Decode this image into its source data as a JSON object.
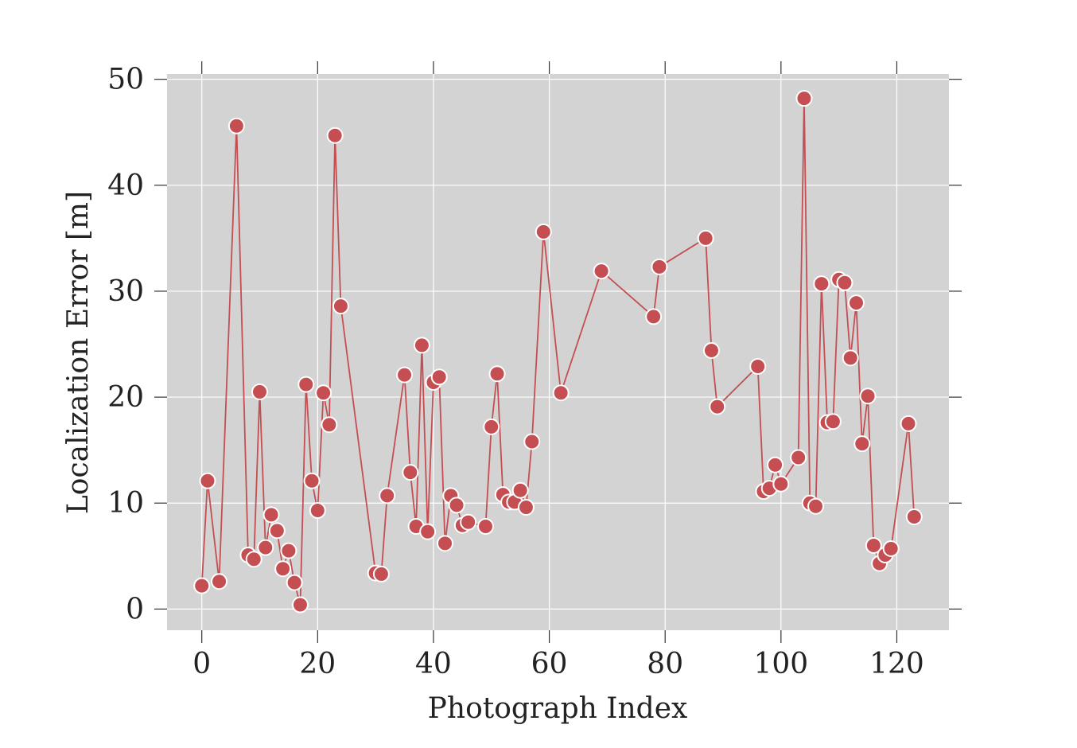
{
  "chart_data": {
    "type": "line",
    "title": "",
    "xlabel": "Photograph Index",
    "ylabel": "Localization Error [m]",
    "xlim": [
      -6,
      129
    ],
    "ylim": [
      -2,
      50.5
    ],
    "xticks": [
      0,
      20,
      40,
      60,
      80,
      100,
      120
    ],
    "xtick_labels": [
      "0",
      "20",
      "40",
      "60",
      "80",
      "100",
      "120"
    ],
    "yticks": [
      0,
      10,
      20,
      30,
      40,
      50
    ],
    "ytick_labels": [
      "0",
      "10",
      "20",
      "30",
      "40",
      "50"
    ],
    "grid": true,
    "legend": "none",
    "colors": {
      "plot_background": "#d3d3d3",
      "grid": "#ffffff",
      "series": "#c44e52",
      "marker_edge": "#ffffff"
    },
    "series": [
      {
        "x": [
          0,
          1,
          3,
          6,
          8,
          9,
          10,
          11,
          12,
          13,
          14,
          15,
          16,
          17,
          18,
          19,
          20,
          21,
          22,
          23,
          24,
          30,
          31,
          32,
          35,
          36,
          37,
          38,
          39,
          40,
          41,
          42,
          43,
          44,
          45,
          46,
          49,
          50,
          51,
          52,
          53,
          54,
          55,
          56,
          57,
          59,
          62,
          69,
          78,
          79,
          87,
          88,
          89,
          96,
          97,
          98,
          99,
          100,
          103,
          104,
          105,
          106,
          107,
          108,
          109,
          110,
          111,
          112,
          113,
          114,
          115,
          116,
          117,
          118,
          119,
          122,
          123
        ],
        "y": [
          2.2,
          12.1,
          2.6,
          45.6,
          5.1,
          4.7,
          20.5,
          5.8,
          8.9,
          7.4,
          3.8,
          5.5,
          2.5,
          0.4,
          21.2,
          12.1,
          9.3,
          20.4,
          17.4,
          44.7,
          28.6,
          3.4,
          3.3,
          10.7,
          22.1,
          12.9,
          7.8,
          24.9,
          7.3,
          21.4,
          21.9,
          6.2,
          10.7,
          9.8,
          7.9,
          8.2,
          7.8,
          17.2,
          22.2,
          10.8,
          10.1,
          10.1,
          11.2,
          9.6,
          15.8,
          35.6,
          20.4,
          31.9,
          27.6,
          32.3,
          35.0,
          24.4,
          19.1,
          22.9,
          11.1,
          11.4,
          13.6,
          11.8,
          14.3,
          48.2,
          10.0,
          9.7,
          30.7,
          17.6,
          17.7,
          31.1,
          30.8,
          23.7,
          28.9,
          15.6,
          20.1,
          6.0,
          4.3,
          5.1,
          5.7,
          17.5,
          8.7
        ]
      }
    ]
  }
}
